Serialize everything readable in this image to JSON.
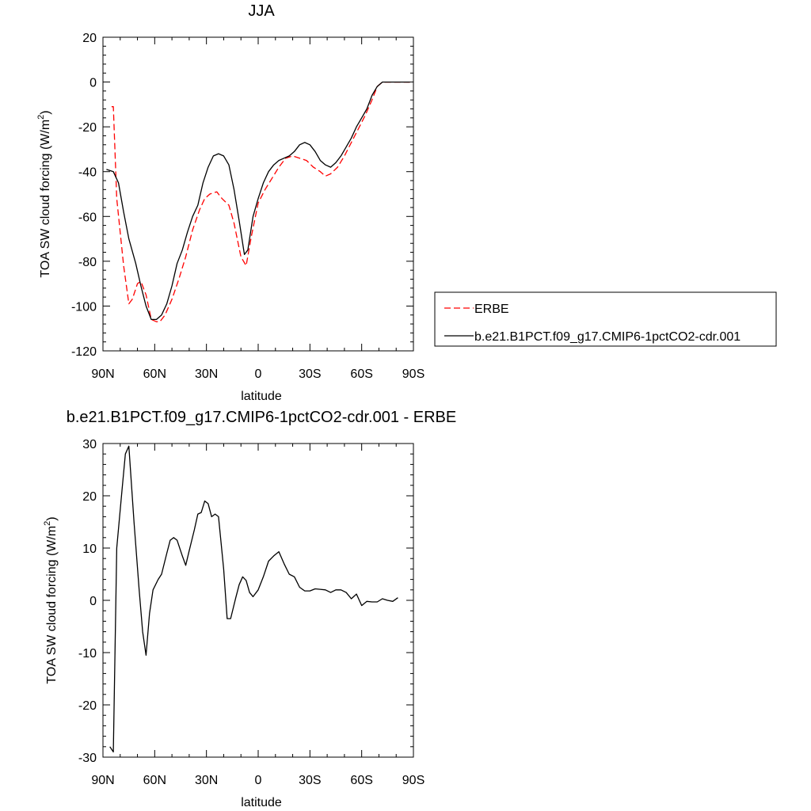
{
  "chart_data": [
    {
      "type": "line",
      "title": "JJA",
      "xlabel": "latitude",
      "ylabel": "TOA SW cloud forcing (W/m²)",
      "xlim": [
        90,
        -90
      ],
      "ylim": [
        -120,
        20
      ],
      "x_ticks": [
        90,
        60,
        30,
        0,
        -30,
        -60,
        -90
      ],
      "x_tick_labels": [
        "90N",
        "60N",
        "30N",
        "0",
        "30S",
        "60S",
        "90S"
      ],
      "y_ticks": [
        20,
        0,
        -20,
        -40,
        -60,
        -80,
        -100,
        -120
      ],
      "y_tick_labels": [
        "20",
        "0",
        "-20",
        "-40",
        "-60",
        "-80",
        "-100",
        "-120"
      ],
      "legend_position": "right",
      "series": [
        {
          "name": "ERBE",
          "color": "#ff0000",
          "style": "dashed",
          "points": [
            [
              85,
              -11
            ],
            [
              84,
              -11
            ],
            [
              82,
              -52
            ],
            [
              78,
              -82
            ],
            [
              75,
              -99
            ],
            [
              73,
              -97
            ],
            [
              70,
              -90
            ],
            [
              68,
              -89
            ],
            [
              65,
              -95
            ],
            [
              62,
              -106
            ],
            [
              59,
              -107
            ],
            [
              57,
              -107
            ],
            [
              54,
              -104
            ],
            [
              50,
              -97
            ],
            [
              46,
              -88
            ],
            [
              42,
              -78
            ],
            [
              38,
              -66
            ],
            [
              34,
              -57
            ],
            [
              31,
              -52
            ],
            [
              28,
              -50
            ],
            [
              24,
              -49
            ],
            [
              21,
              -52
            ],
            [
              17,
              -55
            ],
            [
              14,
              -63
            ],
            [
              10,
              -78
            ],
            [
              7,
              -82
            ],
            [
              4,
              -69
            ],
            [
              0,
              -54
            ],
            [
              -4,
              -48
            ],
            [
              -8,
              -43
            ],
            [
              -12,
              -38
            ],
            [
              -16,
              -34
            ],
            [
              -20,
              -33
            ],
            [
              -24,
              -34
            ],
            [
              -28,
              -35
            ],
            [
              -32,
              -38
            ],
            [
              -36,
              -40
            ],
            [
              -39,
              -42
            ],
            [
              -42,
              -41
            ],
            [
              -46,
              -38
            ],
            [
              -50,
              -33
            ],
            [
              -54,
              -27
            ],
            [
              -58,
              -21
            ],
            [
              -62,
              -15
            ],
            [
              -66,
              -8
            ],
            [
              -69,
              -2
            ],
            [
              -72,
              0
            ],
            [
              -76,
              0
            ],
            [
              -80,
              0
            ],
            [
              -84,
              0
            ],
            [
              -88,
              0
            ]
          ]
        },
        {
          "name": "b.e21.B1PCT.f09_g17.CMIP6-1pctCO2-cdr.001",
          "color": "#000000",
          "style": "solid",
          "points": [
            [
              88,
              -39
            ],
            [
              84,
              -40
            ],
            [
              81,
              -45
            ],
            [
              78,
              -58
            ],
            [
              75,
              -70
            ],
            [
              71,
              -81
            ],
            [
              68,
              -91
            ],
            [
              65,
              -100
            ],
            [
              62,
              -106
            ],
            [
              59,
              -106
            ],
            [
              56,
              -104
            ],
            [
              53,
              -99
            ],
            [
              50,
              -91
            ],
            [
              47,
              -81
            ],
            [
              44,
              -75
            ],
            [
              41,
              -67
            ],
            [
              38,
              -60
            ],
            [
              35,
              -55
            ],
            [
              32,
              -45
            ],
            [
              29,
              -38
            ],
            [
              26,
              -33
            ],
            [
              23,
              -32
            ],
            [
              20,
              -33
            ],
            [
              17,
              -37
            ],
            [
              14,
              -48
            ],
            [
              11,
              -62
            ],
            [
              8,
              -77
            ],
            [
              6,
              -75
            ],
            [
              3,
              -60
            ],
            [
              0,
              -52
            ],
            [
              -3,
              -45
            ],
            [
              -6,
              -40
            ],
            [
              -9,
              -37
            ],
            [
              -12,
              -35
            ],
            [
              -15,
              -34
            ],
            [
              -18,
              -33
            ],
            [
              -21,
              -31
            ],
            [
              -24,
              -28
            ],
            [
              -27,
              -27
            ],
            [
              -30,
              -28
            ],
            [
              -33,
              -31
            ],
            [
              -36,
              -35
            ],
            [
              -39,
              -37
            ],
            [
              -42,
              -38
            ],
            [
              -45,
              -36
            ],
            [
              -48,
              -33
            ],
            [
              -51,
              -29
            ],
            [
              -54,
              -25
            ],
            [
              -57,
              -20
            ],
            [
              -60,
              -16
            ],
            [
              -63,
              -12
            ],
            [
              -66,
              -6
            ],
            [
              -69,
              -2
            ],
            [
              -72,
              0
            ],
            [
              -76,
              0
            ],
            [
              -80,
              0
            ],
            [
              -84,
              0
            ],
            [
              -88,
              0
            ]
          ]
        }
      ]
    },
    {
      "type": "line",
      "title": "b.e21.B1PCT.f09_g17.CMIP6-1pctCO2-cdr.001 - ERBE",
      "xlabel": "latitude",
      "ylabel": "TOA SW cloud forcing (W/m²)",
      "xlim": [
        90,
        -90
      ],
      "ylim": [
        -30,
        30
      ],
      "x_ticks": [
        90,
        60,
        30,
        0,
        -30,
        -60,
        -90
      ],
      "x_tick_labels": [
        "90N",
        "60N",
        "30N",
        "0",
        "30S",
        "60S",
        "90S"
      ],
      "y_ticks": [
        30,
        20,
        10,
        0,
        -10,
        -20,
        -30
      ],
      "y_tick_labels": [
        "30",
        "20",
        "10",
        "0",
        "-10",
        "-20",
        "-30"
      ],
      "series": [
        {
          "color": "#000000",
          "style": "solid",
          "points": [
            [
              86,
              -28
            ],
            [
              84,
              -29
            ],
            [
              82,
              10
            ],
            [
              79,
              21
            ],
            [
              77,
              28
            ],
            [
              75,
              29.5
            ],
            [
              72,
              15
            ],
            [
              69,
              2
            ],
            [
              67,
              -6
            ],
            [
              65,
              -10.5
            ],
            [
              63,
              -2.5
            ],
            [
              61,
              2
            ],
            [
              58,
              4
            ],
            [
              56,
              5
            ],
            [
              53,
              9
            ],
            [
              51,
              11.5
            ],
            [
              49,
              12
            ],
            [
              47,
              11.5
            ],
            [
              44,
              8.5
            ],
            [
              42,
              6.7
            ],
            [
              40,
              9.5
            ],
            [
              37,
              13.5
            ],
            [
              35,
              16.5
            ],
            [
              33,
              16.8
            ],
            [
              31,
              19
            ],
            [
              29,
              18.5
            ],
            [
              27,
              16
            ],
            [
              25,
              16.5
            ],
            [
              23,
              16
            ],
            [
              20,
              6
            ],
            [
              18,
              -3.5
            ],
            [
              16,
              -3.5
            ],
            [
              13,
              0.5
            ],
            [
              11,
              3
            ],
            [
              9,
              4.5
            ],
            [
              7,
              3.8
            ],
            [
              5,
              1.5
            ],
            [
              3,
              0.7
            ],
            [
              0,
              2
            ],
            [
              -3,
              4.5
            ],
            [
              -6,
              7.5
            ],
            [
              -9,
              8.5
            ],
            [
              -12,
              9.3
            ],
            [
              -15,
              7
            ],
            [
              -18,
              5
            ],
            [
              -21,
              4.5
            ],
            [
              -24,
              2.5
            ],
            [
              -27,
              1.8
            ],
            [
              -30,
              1.8
            ],
            [
              -33,
              2.2
            ],
            [
              -36,
              2.1
            ],
            [
              -39,
              2
            ],
            [
              -42,
              1.5
            ],
            [
              -45,
              2
            ],
            [
              -48,
              2
            ],
            [
              -51,
              1.5
            ],
            [
              -54,
              0.3
            ],
            [
              -57,
              1.2
            ],
            [
              -60,
              -1
            ],
            [
              -63,
              -0.2
            ],
            [
              -66,
              -0.3
            ],
            [
              -69,
              -0.3
            ],
            [
              -72,
              0.3
            ],
            [
              -75,
              0
            ],
            [
              -78,
              -0.2
            ],
            [
              -81,
              0.5
            ]
          ]
        }
      ]
    }
  ]
}
